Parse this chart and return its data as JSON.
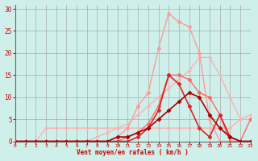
{
  "bg_color": "#cff0ea",
  "grid_color": "#aaaaaa",
  "xlabel": "Vent moyen/en rafales ( km/h )",
  "ylabel_ticks": [
    0,
    5,
    10,
    15,
    20,
    25,
    30
  ],
  "xlim": [
    0,
    23
  ],
  "ylim": [
    0,
    31
  ],
  "xticks": [
    0,
    1,
    2,
    3,
    4,
    5,
    6,
    7,
    8,
    9,
    10,
    11,
    12,
    13,
    14,
    15,
    16,
    17,
    18,
    19,
    20,
    21,
    22,
    23
  ],
  "series": [
    {
      "x": [
        0,
        1,
        2,
        3,
        4,
        5,
        6,
        7,
        8,
        9,
        10,
        11,
        12,
        13,
        14,
        15,
        16,
        17,
        18,
        19,
        20,
        21,
        22,
        23
      ],
      "y": [
        0,
        0,
        0,
        3,
        3,
        3,
        3,
        3,
        3,
        3,
        3,
        3,
        3,
        3,
        3,
        3,
        3,
        3,
        3,
        3,
        3,
        3,
        5,
        6
      ],
      "color": "#ffb0b0",
      "marker": "D",
      "linewidth": 1.0,
      "markersize": 2.0
    },
    {
      "x": [
        0,
        1,
        2,
        3,
        4,
        5,
        6,
        7,
        8,
        9,
        10,
        11,
        12,
        13,
        14,
        15,
        16,
        17,
        18,
        19,
        20,
        21,
        22,
        23
      ],
      "y": [
        0,
        0,
        0,
        0,
        0,
        0,
        0,
        0,
        1,
        2,
        3,
        4,
        6,
        8,
        10,
        12,
        14,
        16,
        19,
        19,
        15,
        10,
        5,
        5
      ],
      "color": "#ffb0b0",
      "marker": "D",
      "linewidth": 1.0,
      "markersize": 2.0
    },
    {
      "x": [
        0,
        1,
        2,
        3,
        4,
        5,
        6,
        7,
        8,
        9,
        10,
        11,
        12,
        13,
        14,
        15,
        16,
        17,
        18,
        19,
        20,
        21,
        22,
        23
      ],
      "y": [
        0,
        0,
        0,
        0,
        0,
        0,
        0,
        0,
        0,
        0,
        1,
        3,
        8,
        11,
        21,
        29,
        27,
        26,
        20,
        5,
        0,
        0,
        0,
        0
      ],
      "color": "#ff9999",
      "marker": "D",
      "linewidth": 1.0,
      "markersize": 2.5
    },
    {
      "x": [
        0,
        1,
        2,
        3,
        4,
        5,
        6,
        7,
        8,
        9,
        10,
        11,
        12,
        13,
        14,
        15,
        16,
        17,
        18,
        19,
        20,
        21,
        22,
        23
      ],
      "y": [
        0,
        0,
        0,
        0,
        0,
        0,
        0,
        0,
        0,
        0,
        0,
        1,
        2,
        4,
        8,
        15,
        15,
        14,
        11,
        10,
        6,
        0,
        0,
        5
      ],
      "color": "#ff6666",
      "marker": "D",
      "linewidth": 1.0,
      "markersize": 2.5
    },
    {
      "x": [
        0,
        1,
        2,
        3,
        4,
        5,
        6,
        7,
        8,
        9,
        10,
        11,
        12,
        13,
        14,
        15,
        16,
        17,
        18,
        19,
        20,
        21,
        22,
        23
      ],
      "y": [
        0,
        0,
        0,
        0,
        0,
        0,
        0,
        0,
        0,
        0,
        0,
        0,
        1,
        3,
        7,
        15,
        13,
        8,
        3,
        1,
        6,
        1,
        0,
        0
      ],
      "color": "#dd2222",
      "marker": "D",
      "linewidth": 1.2,
      "markersize": 2.5
    },
    {
      "x": [
        0,
        1,
        2,
        3,
        4,
        5,
        6,
        7,
        8,
        9,
        10,
        11,
        12,
        13,
        14,
        15,
        16,
        17,
        18,
        19,
        20,
        21,
        22,
        23
      ],
      "y": [
        0,
        0,
        0,
        0,
        0,
        0,
        0,
        0,
        0,
        0,
        1,
        1,
        2,
        3,
        5,
        7,
        9,
        11,
        10,
        6,
        3,
        1,
        0,
        0
      ],
      "color": "#aa0000",
      "marker": "D",
      "linewidth": 1.2,
      "markersize": 2.5
    }
  ]
}
